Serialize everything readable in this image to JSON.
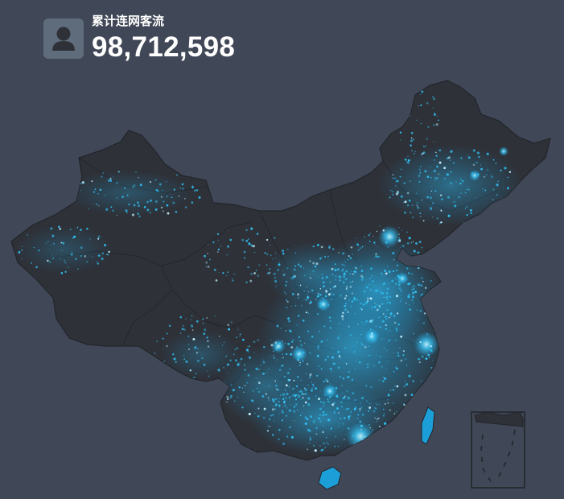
{
  "stat": {
    "label": "累计连网客流",
    "value": "98,712,598",
    "icon": "user-icon"
  },
  "map": {
    "colors": {
      "background": "#404756",
      "land": "#2e3138",
      "border": "#23262c",
      "glow": "#1ba6e6",
      "highlight": "#c9f4ff"
    }
  }
}
